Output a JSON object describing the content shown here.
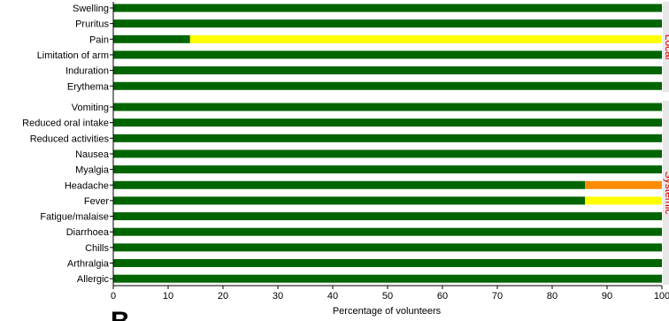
{
  "chart_data": {
    "type": "bar",
    "orientation": "horizontal",
    "stacked": true,
    "xlabel": "Percentage of volunteers",
    "xlim": [
      0,
      100
    ],
    "x_ticks": [
      "0",
      "10",
      "20",
      "30",
      "40",
      "50",
      "60",
      "70",
      "80",
      "90",
      "100"
    ],
    "panel_letter": "B",
    "groups": [
      {
        "label": "Local",
        "rows": [
          {
            "category": "Swelling",
            "segments": [
              100
            ]
          },
          {
            "category": "Pruritus",
            "segments": [
              100
            ]
          },
          {
            "category": "Pain",
            "segments": [
              14,
              86
            ]
          },
          {
            "category": "Limitation of arm",
            "segments": [
              100
            ]
          },
          {
            "category": "Induration",
            "segments": [
              100
            ]
          },
          {
            "category": "Erythema",
            "segments": [
              100
            ]
          }
        ]
      },
      {
        "label": "Systemic",
        "rows": [
          {
            "category": "Vomiting",
            "segments": [
              100
            ]
          },
          {
            "category": "Reduced oral intake",
            "segments": [
              100
            ]
          },
          {
            "category": "Reduced activities",
            "segments": [
              100
            ]
          },
          {
            "category": "Nausea",
            "segments": [
              100
            ]
          },
          {
            "category": "Myalgia",
            "segments": [
              100
            ]
          },
          {
            "category": "Headache",
            "segments": [
              86,
              14
            ]
          },
          {
            "category": "Fever",
            "segments": [
              86,
              14
            ]
          },
          {
            "category": "Fatigue/malaise",
            "segments": [
              100
            ]
          },
          {
            "category": "Diarrhoea",
            "segments": [
              100
            ]
          },
          {
            "category": "Chills",
            "segments": [
              100
            ]
          },
          {
            "category": "Arthralgia",
            "segments": [
              100
            ]
          },
          {
            "category": "Allergic",
            "segments": [
              100
            ]
          }
        ]
      }
    ],
    "segment_colors": {
      "Pain": [
        "#006400",
        "#ffff00"
      ],
      "Headache": [
        "#006400",
        "#ff8c00"
      ],
      "Fever": [
        "#006400",
        "#ffff00"
      ],
      "default": [
        "#006400"
      ]
    },
    "colors": {
      "bar_base": "#006400",
      "group_label": "#e00000"
    }
  }
}
